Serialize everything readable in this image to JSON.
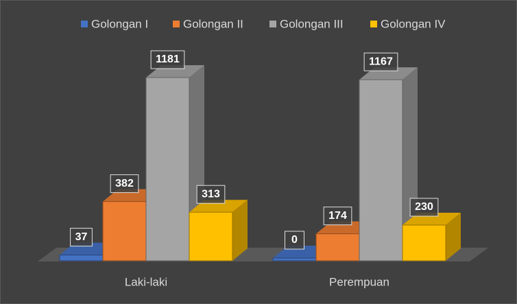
{
  "chart_data": {
    "type": "bar3d",
    "categories": [
      "Laki-laki",
      "Perempuan"
    ],
    "series": [
      {
        "name": "Golongan I",
        "color": "#4472c4",
        "values": [
          37,
          0
        ]
      },
      {
        "name": "Golongan II",
        "color": "#ed7d31",
        "values": [
          382,
          174
        ]
      },
      {
        "name": "Golongan III",
        "color": "#a5a5a5",
        "values": [
          1181,
          1167
        ]
      },
      {
        "name": "Golongan IV",
        "color": "#ffc000",
        "values": [
          313,
          230
        ]
      }
    ],
    "legend": "top"
  }
}
